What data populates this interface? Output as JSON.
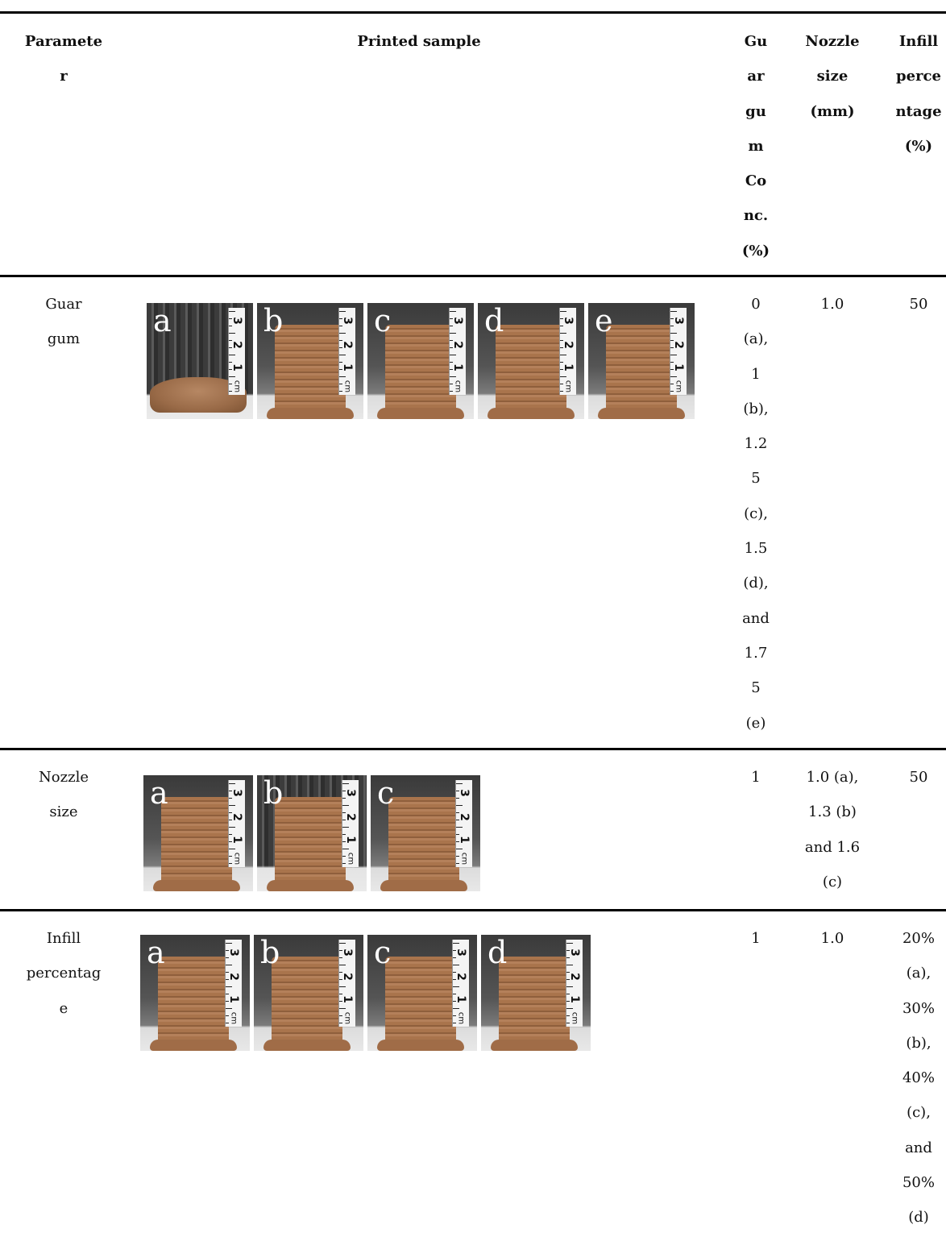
{
  "header": {
    "parameter": [
      "Paramete",
      "r"
    ],
    "printed_sample": "Printed sample",
    "guar_conc": [
      "Gu",
      "ar",
      "gu",
      "m",
      "Co",
      "nc.",
      "(%)"
    ],
    "nozzle_size": [
      "Nozzle",
      "size",
      "(mm)"
    ],
    "infill": [
      "Infill",
      "perce",
      "ntage",
      "(%)"
    ]
  },
  "rows": [
    {
      "parameter": [
        "Guar",
        "gum"
      ],
      "photo_labels": [
        "a",
        "b",
        "c",
        "d",
        "e"
      ],
      "guar_conc": [
        "0",
        "(a),",
        "1",
        "(b),",
        "1.2",
        "5",
        "(c),",
        "1.5",
        "(d),",
        "and",
        "1.7",
        "5",
        "(e)"
      ],
      "nozzle_size": [
        "1.0"
      ],
      "infill": [
        "50"
      ]
    },
    {
      "parameter": [
        "Nozzle",
        "size"
      ],
      "photo_labels": [
        "a",
        "b",
        "c"
      ],
      "guar_conc": [
        "1"
      ],
      "nozzle_size": [
        "1.0 (a),",
        "1.3 (b)",
        "and 1.6",
        "(c)"
      ],
      "infill": [
        "50"
      ]
    },
    {
      "parameter": [
        "Infill",
        "percentag",
        "e"
      ],
      "photo_labels": [
        "a",
        "b",
        "c",
        "d"
      ],
      "guar_conc": [
        "1"
      ],
      "nozzle_size": [
        "1.0"
      ],
      "infill": [
        "20%",
        "(a),",
        "30%",
        "(b),",
        "40%",
        "(c),",
        "and",
        "50%",
        "(d)"
      ]
    }
  ],
  "ruler_numbers": [
    "3",
    "2",
    "1",
    "cm"
  ]
}
